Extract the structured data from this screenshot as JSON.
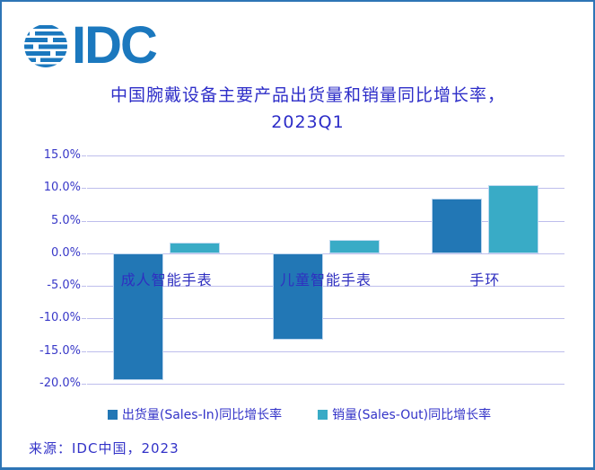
{
  "logo": {
    "text": "IDC"
  },
  "header": {
    "title_line1": "中国腕戴设备主要产品出货量和销量同比增长率，",
    "title_line2": "2023Q1"
  },
  "chart_data": {
    "type": "bar",
    "title": "中国腕戴设备主要产品出货量和销量同比增长率，2023Q1",
    "categories": [
      "成人智能手表",
      "儿童智能手表",
      "手环"
    ],
    "series": [
      {
        "name": "出货量(Sales-In)同比增长率",
        "color": "#2277B5",
        "values": [
          -19.5,
          -13.3,
          8.4
        ]
      },
      {
        "name": "销量(Sales-Out)同比增长率",
        "color": "#39ABC6",
        "values": [
          1.7,
          2.1,
          10.4
        ]
      }
    ],
    "xlabel": "",
    "ylabel": "",
    "unit": "percent",
    "ylim": [
      -20,
      15
    ],
    "ytick_step": 5,
    "ytick_labels": [
      "15.0%",
      "10.0%",
      "5.0%",
      "0.0%",
      "-5.0%",
      "-10.0%",
      "-15.0%",
      "-20.0%"
    ],
    "grid": true,
    "legend_position": "bottom"
  },
  "footer": {
    "source": "来源：IDC中国，2023"
  },
  "colors": {
    "border": "#2E75B6",
    "background": "#FFFFFF",
    "logo_blue": "#1B78BE",
    "title_text": "#2D2DC8",
    "axis_text": "#3838C8",
    "category_text": "#2F2FC0",
    "gridline": "#BEBEEC",
    "series_sales_in": "#2277B5",
    "series_sales_out": "#39ABC6"
  }
}
